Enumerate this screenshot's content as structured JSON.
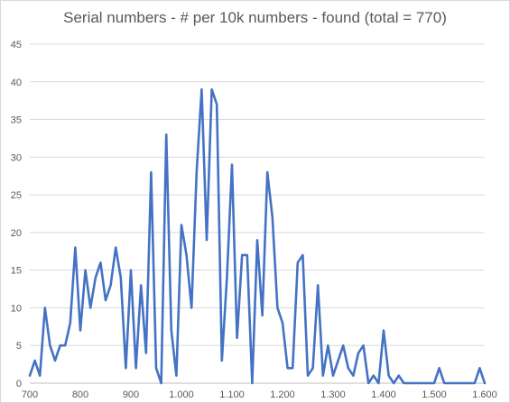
{
  "chart_data": {
    "type": "line",
    "title": "Serial numbers - # per 10k numbers - found (total = 770)",
    "xlabel": "",
    "ylabel": "",
    "xlim": [
      700,
      1600
    ],
    "ylim": [
      0,
      45
    ],
    "x_ticks": [
      700,
      800,
      900,
      1000,
      1100,
      1200,
      1300,
      1400,
      1500,
      1600
    ],
    "x_tick_labels": [
      "700",
      "800",
      "900",
      "1.000",
      "1.100",
      "1.200",
      "1.300",
      "1.400",
      "1.500",
      "1.600"
    ],
    "y_ticks": [
      0,
      5,
      10,
      15,
      20,
      25,
      30,
      35,
      40,
      45
    ],
    "y_tick_labels": [
      "0",
      "5",
      "10",
      "15",
      "20",
      "25",
      "30",
      "35",
      "40",
      "45"
    ],
    "grid": "horizontal",
    "legend": "none",
    "series": [
      {
        "color": "#4472c4",
        "x": [
          700,
          710,
          720,
          730,
          740,
          750,
          760,
          770,
          780,
          790,
          800,
          810,
          820,
          830,
          840,
          850,
          860,
          870,
          880,
          890,
          900,
          910,
          920,
          930,
          940,
          950,
          960,
          970,
          980,
          990,
          1000,
          1010,
          1020,
          1030,
          1040,
          1050,
          1060,
          1070,
          1080,
          1090,
          1100,
          1110,
          1120,
          1130,
          1140,
          1150,
          1160,
          1170,
          1180,
          1190,
          1200,
          1210,
          1220,
          1230,
          1240,
          1250,
          1260,
          1270,
          1280,
          1290,
          1300,
          1310,
          1320,
          1330,
          1340,
          1350,
          1360,
          1370,
          1380,
          1390,
          1400,
          1410,
          1420,
          1430,
          1440,
          1450,
          1460,
          1470,
          1480,
          1490,
          1500,
          1510,
          1520,
          1530,
          1540,
          1550,
          1560,
          1570,
          1580,
          1590,
          1600
        ],
        "values": [
          1,
          3,
          1,
          10,
          5,
          3,
          5,
          5,
          8,
          18,
          7,
          15,
          10,
          14,
          16,
          11,
          13,
          18,
          14,
          2,
          15,
          2,
          13,
          4,
          28,
          2,
          0,
          33,
          7,
          1,
          21,
          17,
          10,
          28,
          39,
          19,
          39,
          37,
          3,
          14,
          29,
          6,
          17,
          17,
          0,
          19,
          9,
          28,
          22,
          10,
          8,
          2,
          2,
          16,
          17,
          1,
          2,
          13,
          1,
          5,
          1,
          3,
          5,
          2,
          1,
          4,
          5,
          0,
          1,
          0,
          7,
          1,
          0,
          1,
          0,
          0,
          0,
          0,
          0,
          0,
          0,
          2,
          0,
          0,
          0,
          0,
          0,
          0,
          0,
          2,
          0
        ]
      }
    ]
  }
}
